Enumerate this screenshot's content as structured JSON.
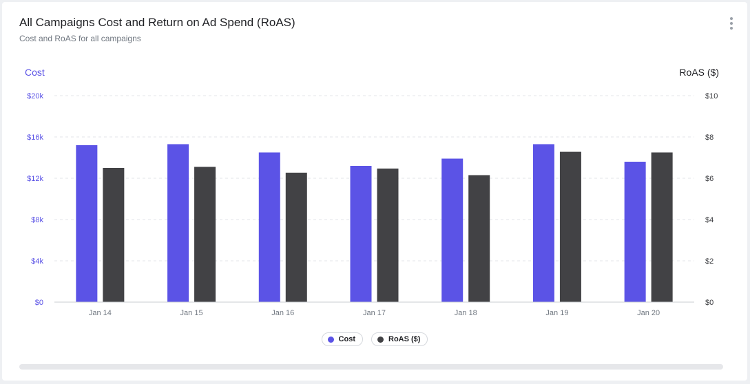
{
  "header": {
    "title": "All Campaigns Cost and Return on Ad Spend (RoAS)",
    "subtitle": "Cost and RoAS for all campaigns"
  },
  "colors": {
    "cost": "#5b53e6",
    "roas": "#424245",
    "grid": "#e3e5e8",
    "axis_left_text": "#5b53e6",
    "axis_right_text": "#3a3b3f"
  },
  "chart_data": {
    "type": "bar",
    "title": "All Campaigns Cost and Return on Ad Spend (RoAS)",
    "categories": [
      "Jan 14",
      "Jan 15",
      "Jan 16",
      "Jan 17",
      "Jan 18",
      "Jan 19",
      "Jan 20"
    ],
    "series": [
      {
        "name": "Cost",
        "axis": "left",
        "values": [
          15200,
          15300,
          14500,
          13200,
          13900,
          15300,
          13600
        ]
      },
      {
        "name": "RoAS ($)",
        "axis": "right",
        "values": [
          6.5,
          6.55,
          6.27,
          6.47,
          6.15,
          7.28,
          7.25
        ]
      }
    ],
    "y_left": {
      "label": "Cost",
      "ylim": [
        0,
        20000
      ],
      "ticks": [
        "$0",
        "$4k",
        "$8k",
        "$12k",
        "$16k",
        "$20k"
      ]
    },
    "y_right": {
      "label": "RoAS ($)",
      "ylim": [
        0,
        10
      ],
      "ticks": [
        "$0",
        "$2",
        "$4",
        "$6",
        "$8",
        "$10"
      ]
    },
    "grid": true,
    "legend": {
      "position": "bottom-center",
      "items": [
        "Cost",
        "RoAS ($)"
      ]
    }
  }
}
